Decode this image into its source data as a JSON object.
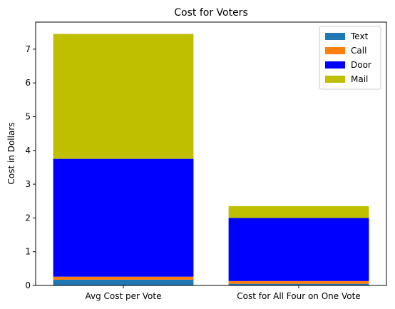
{
  "chart_data": {
    "type": "bar",
    "stacked": true,
    "title": "Cost for Voters",
    "xlabel": "",
    "ylabel": "Cost in Dollars",
    "categories": [
      "Avg Cost per Vote",
      "Cost for All Four on One Vote"
    ],
    "ylim": [
      0,
      7.8
    ],
    "yticks": [
      0,
      1,
      2,
      3,
      4,
      5,
      6,
      7
    ],
    "legend_position": "top-right",
    "grid": false,
    "series": [
      {
        "name": "Text",
        "color": "#1f77b4",
        "values": [
          0.17,
          0.05
        ]
      },
      {
        "name": "Call",
        "color": "#ff7f0e",
        "values": [
          0.09,
          0.08
        ]
      },
      {
        "name": "Door",
        "color": "#0000ff",
        "values": [
          3.49,
          1.87
        ]
      },
      {
        "name": "Mail",
        "color": "#bfbf00",
        "values": [
          3.7,
          0.35
        ]
      }
    ]
  }
}
